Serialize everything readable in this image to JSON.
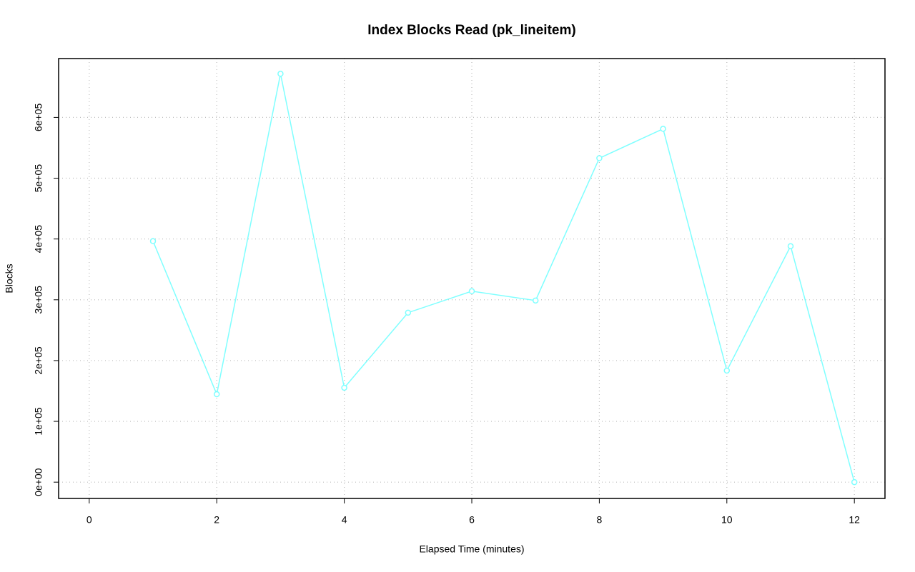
{
  "chart_data": {
    "type": "line",
    "title": "Index Blocks Read (pk_lineitem)",
    "x_label": "Elapsed Time (minutes)",
    "y_label": "Blocks",
    "x": [
      1,
      2,
      3,
      4,
      5,
      6,
      7,
      8,
      9,
      10,
      11,
      12
    ],
    "series": [
      {
        "name": "Blocks",
        "color": "#7fffff",
        "values": [
          396500,
          144700,
          671800,
          155300,
          278800,
          314100,
          298800,
          532900,
          581200,
          183500,
          388200,
          0
        ]
      }
    ],
    "xlim": [
      -0.48,
      12.48
    ],
    "xticks": [
      0,
      2,
      4,
      6,
      8,
      10,
      12
    ],
    "ylim": [
      -26800,
      696800
    ],
    "yticks": [
      {
        "value": 0,
        "label": "0e+00"
      },
      {
        "value": 100000,
        "label": "1e+05"
      },
      {
        "value": 200000,
        "label": "2e+05"
      },
      {
        "value": 300000,
        "label": "3e+05"
      },
      {
        "value": 400000,
        "label": "4e+05"
      },
      {
        "value": 500000,
        "label": "5e+05"
      },
      {
        "value": 600000,
        "label": "6e+05"
      }
    ],
    "grid": true
  }
}
